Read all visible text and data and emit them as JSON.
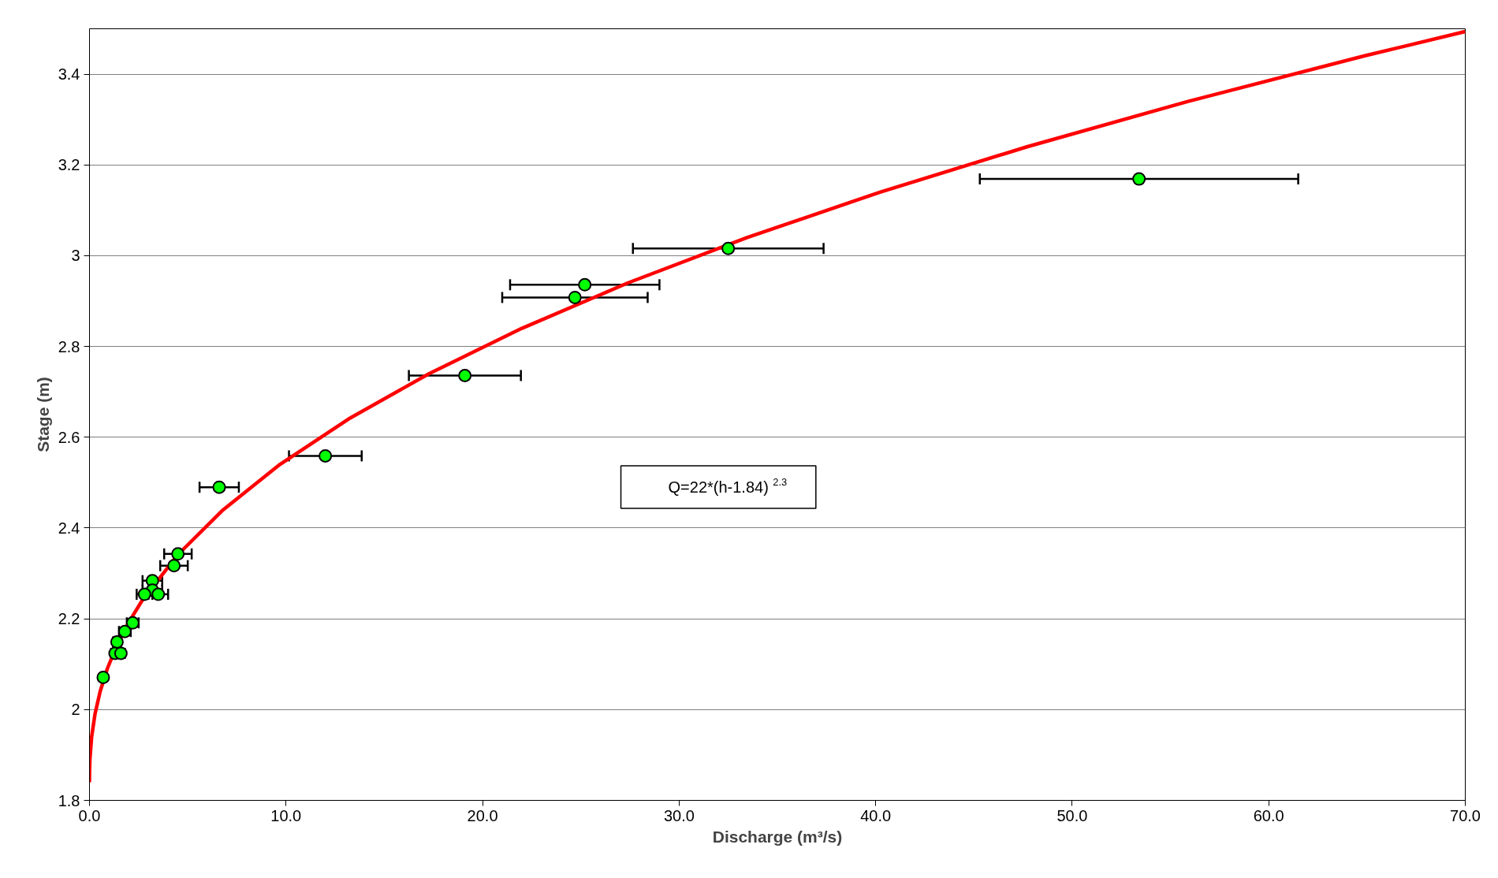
{
  "chart_data": {
    "type": "scatter",
    "xlabel": "Discharge (m³/s)",
    "ylabel": "Stage (m)",
    "annotations": [
      "Q=22*(h-1.84)$^{2.3}$"
    ],
    "xlim": [
      0,
      70
    ],
    "ylim": [
      1.8,
      3.5
    ],
    "xticks": [
      {
        "value": 0,
        "label": "0.0"
      },
      {
        "value": 10,
        "label": "10.0"
      },
      {
        "value": 20,
        "label": "20.0"
      },
      {
        "value": 30,
        "label": "30.0"
      },
      {
        "value": 40,
        "label": "40.0"
      },
      {
        "value": 50,
        "label": "50.0"
      },
      {
        "value": 60,
        "label": "60.0"
      },
      {
        "value": 70,
        "label": "70.0"
      }
    ],
    "yticks": [
      1.8,
      2,
      2.2,
      2.4,
      2.6,
      2.8,
      3,
      3.2,
      3.4
    ],
    "grid": "y",
    "marker": "circle",
    "series": [
      {
        "color": "#00ff00",
        "x": [
          53.4,
          32.5,
          25.2,
          24.7,
          19.1,
          12.0,
          6.6,
          4.5,
          4.3,
          3.2,
          3.2,
          2.8,
          3.5,
          2.2,
          1.8,
          1.4,
          1.3,
          1.6,
          0.7
        ],
        "values": [
          3.169,
          3.016,
          2.936,
          2.908,
          2.736,
          2.559,
          2.49,
          2.343,
          2.317,
          2.284,
          2.263,
          2.254,
          2.254,
          2.191,
          2.172,
          2.149,
          2.124,
          2.124,
          2.071
        ],
        "xerrors": [
          8.1,
          4.85,
          3.8,
          3.7,
          2.85,
          1.85,
          1.0,
          0.7,
          0.7,
          0.5,
          0.5,
          0.4,
          0.5,
          0.3,
          0.3,
          0.2,
          0.2,
          0.2,
          0.1
        ]
      },
      {
        "type": "line",
        "color": "#ff0000",
        "marker": "none",
        "line_style": "solid",
        "x": [
          0,
          0.0006,
          0.0027,
          0.0224,
          0.11,
          0.28,
          0.543,
          0.907,
          1.38,
          1.967,
          2.674,
          4.468,
          6.796,
          9.687,
          13.17,
          17.27,
          22.0,
          27.39,
          33.46,
          40.22,
          47.7,
          55.9,
          64.85,
          70.0
        ],
        "values": [
          1.84,
          1.85,
          1.86,
          1.89,
          1.94,
          1.99,
          2.04,
          2.09,
          2.14,
          2.19,
          2.24,
          2.34,
          2.44,
          2.54,
          2.64,
          2.74,
          2.84,
          2.94,
          3.04,
          3.14,
          3.24,
          3.34,
          3.44,
          3.494
        ]
      }
    ]
  }
}
